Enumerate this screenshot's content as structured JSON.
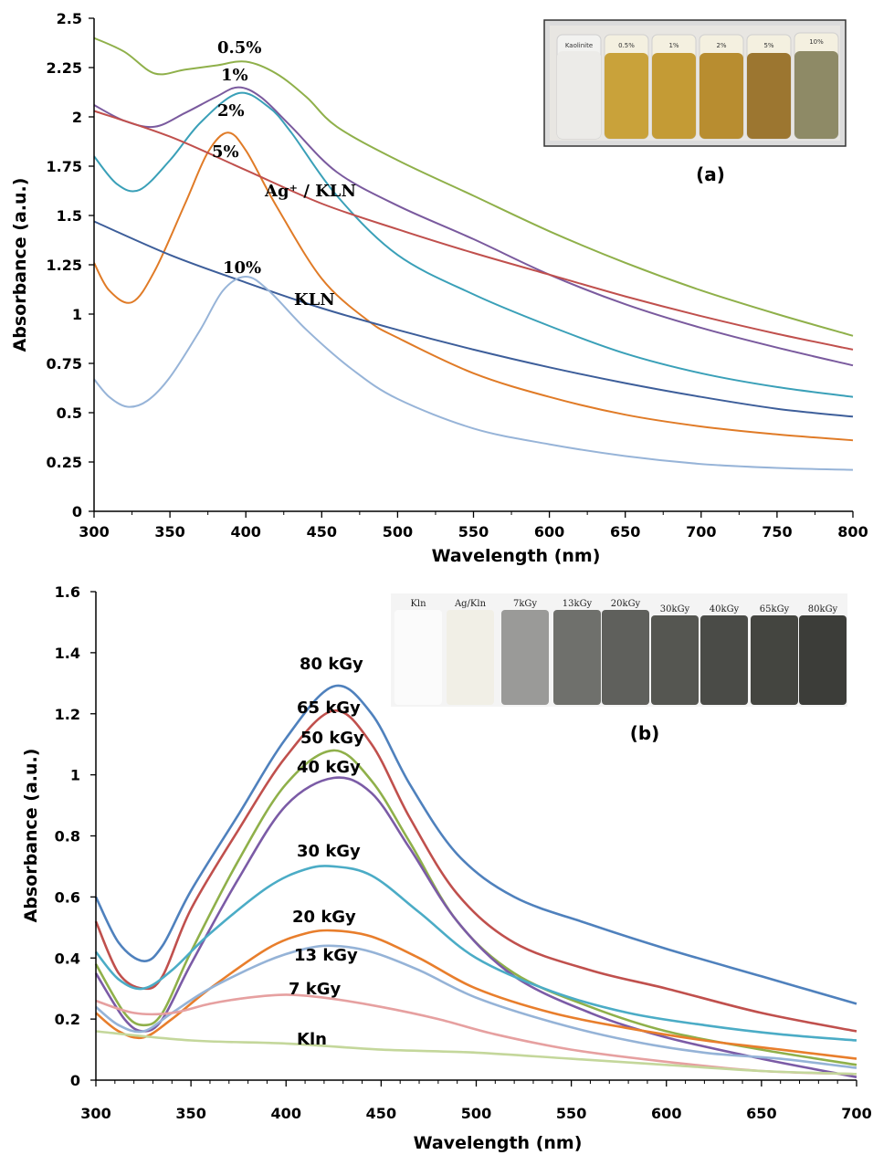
{
  "chart_data": [
    {
      "panel_label": "(a)",
      "type": "line",
      "xlabel": "Wavelength (nm)",
      "ylabel": "Absorbance (a.u.)",
      "xlim": [
        300,
        800
      ],
      "ylim": [
        0,
        2.5
      ],
      "xticks": [
        "300",
        "350",
        "400",
        "450",
        "500",
        "550",
        "600",
        "650",
        "700",
        "750",
        "800"
      ],
      "yticks": [
        "0",
        "0.25",
        "0.5",
        "0.75",
        "1",
        "1.25",
        "1.5",
        "1.75",
        "2",
        "2.25",
        "2.5"
      ],
      "grid": false,
      "inset_vials": [
        "Kaolinite",
        "0.5%",
        "1%",
        "2%",
        "5%",
        "10%"
      ],
      "series": [
        {
          "name": "0.5%",
          "color": "#8FB04A",
          "points": [
            [
              300,
              2.4
            ],
            [
              320,
              2.33
            ],
            [
              340,
              2.22
            ],
            [
              360,
              2.24
            ],
            [
              380,
              2.26
            ],
            [
              400,
              2.28
            ],
            [
              420,
              2.22
            ],
            [
              440,
              2.1
            ],
            [
              460,
              1.95
            ],
            [
              500,
              1.78
            ],
            [
              550,
              1.6
            ],
            [
              600,
              1.42
            ],
            [
              650,
              1.26
            ],
            [
              700,
              1.12
            ],
            [
              750,
              1.0
            ],
            [
              800,
              0.89
            ]
          ]
        },
        {
          "name": "1%",
          "color": "#7A5A9E",
          "points": [
            [
              300,
              2.06
            ],
            [
              320,
              1.98
            ],
            [
              340,
              1.95
            ],
            [
              360,
              2.02
            ],
            [
              380,
              2.1
            ],
            [
              395,
              2.15
            ],
            [
              410,
              2.1
            ],
            [
              430,
              1.95
            ],
            [
              460,
              1.72
            ],
            [
              500,
              1.55
            ],
            [
              550,
              1.38
            ],
            [
              600,
              1.2
            ],
            [
              650,
              1.05
            ],
            [
              700,
              0.93
            ],
            [
              750,
              0.83
            ],
            [
              800,
              0.74
            ]
          ]
        },
        {
          "name": "2%",
          "color": "#3AA0B8",
          "points": [
            [
              300,
              1.8
            ],
            [
              315,
              1.66
            ],
            [
              330,
              1.63
            ],
            [
              350,
              1.78
            ],
            [
              370,
              1.97
            ],
            [
              395,
              2.12
            ],
            [
              415,
              2.05
            ],
            [
              430,
              1.92
            ],
            [
              460,
              1.6
            ],
            [
              500,
              1.3
            ],
            [
              550,
              1.1
            ],
            [
              600,
              0.94
            ],
            [
              650,
              0.8
            ],
            [
              700,
              0.7
            ],
            [
              750,
              0.63
            ],
            [
              800,
              0.58
            ]
          ]
        },
        {
          "name": "5%",
          "color": "#E07B27",
          "points": [
            [
              300,
              1.26
            ],
            [
              310,
              1.12
            ],
            [
              325,
              1.06
            ],
            [
              340,
              1.22
            ],
            [
              360,
              1.56
            ],
            [
              375,
              1.82
            ],
            [
              388,
              1.92
            ],
            [
              400,
              1.83
            ],
            [
              420,
              1.55
            ],
            [
              450,
              1.18
            ],
            [
              480,
              0.97
            ],
            [
              500,
              0.88
            ],
            [
              550,
              0.7
            ],
            [
              600,
              0.58
            ],
            [
              650,
              0.49
            ],
            [
              700,
              0.43
            ],
            [
              750,
              0.39
            ],
            [
              800,
              0.36
            ]
          ]
        },
        {
          "name": "Ag⁺ / KLN",
          "color": "#C0504D",
          "points": [
            [
              300,
              2.03
            ],
            [
              350,
              1.9
            ],
            [
              400,
              1.73
            ],
            [
              450,
              1.56
            ],
            [
              500,
              1.43
            ],
            [
              550,
              1.31
            ],
            [
              600,
              1.2
            ],
            [
              650,
              1.09
            ],
            [
              700,
              0.99
            ],
            [
              750,
              0.9
            ],
            [
              800,
              0.82
            ]
          ]
        },
        {
          "name": "KLN",
          "color": "#3D5E9A",
          "points": [
            [
              300,
              1.47
            ],
            [
              350,
              1.3
            ],
            [
              400,
              1.16
            ],
            [
              450,
              1.03
            ],
            [
              500,
              0.92
            ],
            [
              550,
              0.82
            ],
            [
              600,
              0.73
            ],
            [
              650,
              0.65
            ],
            [
              700,
              0.58
            ],
            [
              750,
              0.52
            ],
            [
              800,
              0.48
            ]
          ]
        },
        {
          "name": "10%",
          "color": "#97B4D8",
          "points": [
            [
              300,
              0.67
            ],
            [
              310,
              0.58
            ],
            [
              322,
              0.53
            ],
            [
              335,
              0.56
            ],
            [
              350,
              0.68
            ],
            [
              370,
              0.92
            ],
            [
              385,
              1.12
            ],
            [
              400,
              1.19
            ],
            [
              415,
              1.12
            ],
            [
              440,
              0.92
            ],
            [
              470,
              0.72
            ],
            [
              500,
              0.57
            ],
            [
              550,
              0.42
            ],
            [
              600,
              0.34
            ],
            [
              650,
              0.28
            ],
            [
              700,
              0.24
            ],
            [
              750,
              0.22
            ],
            [
              800,
              0.21
            ]
          ]
        }
      ]
    },
    {
      "panel_label": "(b)",
      "type": "line",
      "xlabel": "Wavelength (nm)",
      "ylabel": "Absorbance (a.u.)",
      "xlim": [
        300,
        700
      ],
      "ylim": [
        0,
        1.6
      ],
      "xticks": [
        "300",
        "350",
        "400",
        "450",
        "500",
        "550",
        "600",
        "650",
        "700"
      ],
      "yticks": [
        "0",
        "0.2",
        "0.4",
        "0.6",
        "0.8",
        "1",
        "1.2",
        "1.4",
        "1.6"
      ],
      "grid": false,
      "inset_vials": [
        "Kln",
        "Ag/Kln",
        "7kGy",
        "13kGy",
        "20kGy",
        "30kGy",
        "40kGy",
        "65kGy",
        "80kGy"
      ],
      "series": [
        {
          "name": "80 kGy",
          "color": "#4F81BD",
          "points": [
            [
              300,
              0.6
            ],
            [
              312,
              0.45
            ],
            [
              325,
              0.39
            ],
            [
              335,
              0.44
            ],
            [
              350,
              0.62
            ],
            [
              375,
              0.87
            ],
            [
              400,
              1.12
            ],
            [
              425,
              1.29
            ],
            [
              445,
              1.2
            ],
            [
              465,
              0.97
            ],
            [
              490,
              0.74
            ],
            [
              520,
              0.6
            ],
            [
              560,
              0.51
            ],
            [
              600,
              0.43
            ],
            [
              650,
              0.34
            ],
            [
              700,
              0.25
            ]
          ]
        },
        {
          "name": "65 kGy",
          "color": "#C0504D",
          "points": [
            [
              300,
              0.52
            ],
            [
              312,
              0.35
            ],
            [
              325,
              0.3
            ],
            [
              335,
              0.34
            ],
            [
              350,
              0.56
            ],
            [
              375,
              0.82
            ],
            [
              400,
              1.06
            ],
            [
              425,
              1.21
            ],
            [
              445,
              1.1
            ],
            [
              465,
              0.86
            ],
            [
              490,
              0.61
            ],
            [
              520,
              0.45
            ],
            [
              560,
              0.36
            ],
            [
              600,
              0.3
            ],
            [
              650,
              0.22
            ],
            [
              700,
              0.16
            ]
          ]
        },
        {
          "name": "50 kGy",
          "color": "#8FB04A",
          "points": [
            [
              300,
              0.38
            ],
            [
              315,
              0.22
            ],
            [
              325,
              0.18
            ],
            [
              335,
              0.22
            ],
            [
              350,
              0.42
            ],
            [
              375,
              0.72
            ],
            [
              400,
              0.97
            ],
            [
              425,
              1.08
            ],
            [
              445,
              0.98
            ],
            [
              465,
              0.78
            ],
            [
              490,
              0.52
            ],
            [
              520,
              0.35
            ],
            [
              560,
              0.24
            ],
            [
              600,
              0.16
            ],
            [
              650,
              0.1
            ],
            [
              700,
              0.05
            ]
          ]
        },
        {
          "name": "40 kGy",
          "color": "#7B5BA6",
          "points": [
            [
              300,
              0.35
            ],
            [
              315,
              0.2
            ],
            [
              325,
              0.16
            ],
            [
              335,
              0.2
            ],
            [
              350,
              0.38
            ],
            [
              375,
              0.66
            ],
            [
              400,
              0.9
            ],
            [
              425,
              0.99
            ],
            [
              445,
              0.94
            ],
            [
              465,
              0.76
            ],
            [
              490,
              0.52
            ],
            [
              520,
              0.34
            ],
            [
              560,
              0.22
            ],
            [
              600,
              0.14
            ],
            [
              650,
              0.07
            ],
            [
              700,
              0.01
            ]
          ]
        },
        {
          "name": "30 kGy",
          "color": "#4BACC6",
          "points": [
            [
              300,
              0.42
            ],
            [
              312,
              0.33
            ],
            [
              325,
              0.3
            ],
            [
              340,
              0.36
            ],
            [
              360,
              0.48
            ],
            [
              390,
              0.63
            ],
            [
              410,
              0.69
            ],
            [
              425,
              0.7
            ],
            [
              445,
              0.67
            ],
            [
              470,
              0.55
            ],
            [
              500,
              0.4
            ],
            [
              540,
              0.29
            ],
            [
              580,
              0.22
            ],
            [
              620,
              0.18
            ],
            [
              660,
              0.15
            ],
            [
              700,
              0.13
            ]
          ]
        },
        {
          "name": "20 kGy",
          "color": "#E87E2C",
          "points": [
            [
              300,
              0.22
            ],
            [
              312,
              0.16
            ],
            [
              325,
              0.14
            ],
            [
              340,
              0.2
            ],
            [
              360,
              0.3
            ],
            [
              390,
              0.43
            ],
            [
              410,
              0.48
            ],
            [
              425,
              0.49
            ],
            [
              445,
              0.47
            ],
            [
              470,
              0.4
            ],
            [
              500,
              0.3
            ],
            [
              540,
              0.22
            ],
            [
              580,
              0.17
            ],
            [
              620,
              0.13
            ],
            [
              660,
              0.1
            ],
            [
              700,
              0.07
            ]
          ]
        },
        {
          "name": "13 kGy",
          "color": "#95B3D7",
          "points": [
            [
              300,
              0.24
            ],
            [
              312,
              0.18
            ],
            [
              325,
              0.16
            ],
            [
              340,
              0.22
            ],
            [
              360,
              0.3
            ],
            [
              390,
              0.39
            ],
            [
              410,
              0.43
            ],
            [
              425,
              0.44
            ],
            [
              445,
              0.42
            ],
            [
              470,
              0.36
            ],
            [
              500,
              0.27
            ],
            [
              540,
              0.19
            ],
            [
              580,
              0.13
            ],
            [
              620,
              0.09
            ],
            [
              660,
              0.07
            ],
            [
              700,
              0.04
            ]
          ]
        },
        {
          "name": "7 kGy",
          "color": "#E6A0A0",
          "points": [
            [
              300,
              0.26
            ],
            [
              320,
              0.22
            ],
            [
              340,
              0.22
            ],
            [
              360,
              0.25
            ],
            [
              380,
              0.27
            ],
            [
              400,
              0.28
            ],
            [
              420,
              0.27
            ],
            [
              450,
              0.24
            ],
            [
              480,
              0.2
            ],
            [
              510,
              0.15
            ],
            [
              550,
              0.1
            ],
            [
              600,
              0.06
            ],
            [
              650,
              0.03
            ],
            [
              700,
              0.02
            ]
          ]
        },
        {
          "name": "Kln",
          "color": "#C4D79B",
          "points": [
            [
              300,
              0.16
            ],
            [
              350,
              0.13
            ],
            [
              400,
              0.12
            ],
            [
              450,
              0.1
            ],
            [
              500,
              0.09
            ],
            [
              550,
              0.07
            ],
            [
              600,
              0.05
            ],
            [
              650,
              0.03
            ],
            [
              700,
              0.02
            ]
          ]
        }
      ]
    }
  ]
}
